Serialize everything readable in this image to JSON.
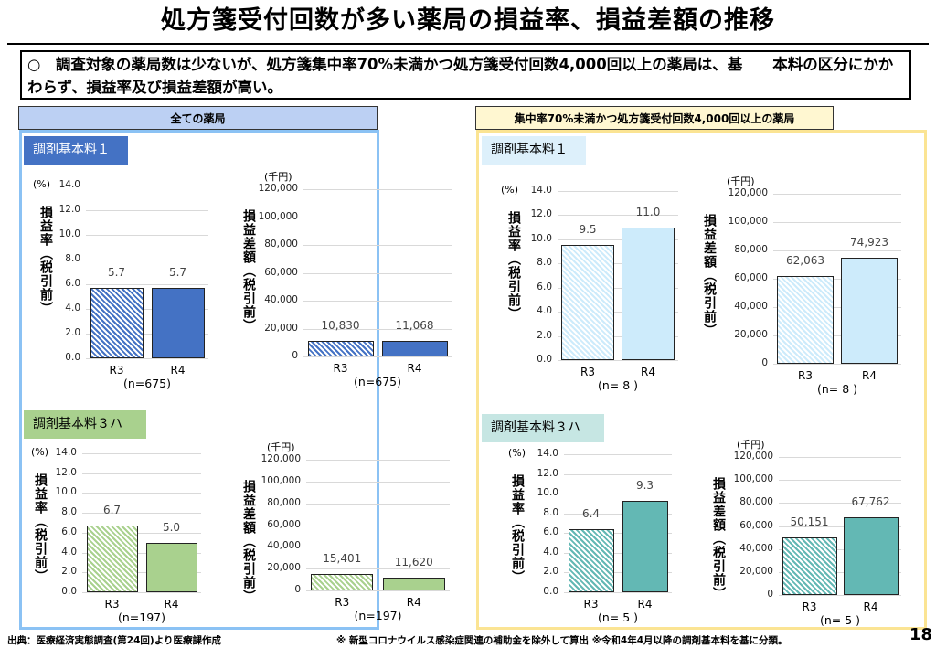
{
  "title": "処方箋受付回数が多い薬局の損益率、損益差額の推移",
  "summary": "○　調査対象の薬局数は少ないが、処方箋集中率70%未満かつ処方箋受付回数4,000回以上の薬局は、基　　本料の区分にかかわらず、損益率及び損益差額が高い。",
  "headers": {
    "left": "全ての薬局",
    "right": "集中率70%未満かつ処方箋受付回数4,000回以上の薬局"
  },
  "sections": {
    "lt": "調剤基本料１",
    "lb": "調剤基本料３ハ",
    "rt": "調剤基本料１",
    "rb": "調剤基本料３ハ"
  },
  "footer": {
    "source": "出典：医療経済実態調査(第24回)より医療課作成",
    "note": "※ 新型コロナウイルス感染症関連の補助金を除外して算出 ※令和4年4月以降の調剤基本料を基に分類。",
    "page": "18"
  },
  "colors": {
    "blue": "#4472C4",
    "green": "#A9D18E",
    "lightblue": "#CDEBFB",
    "teal": "#63B8B4"
  },
  "chart_data": [
    {
      "type": "bar",
      "title": "全ての薬局 調剤基本料１ 損益率",
      "ylabel": "損益率（税引前）",
      "unit": "(%)",
      "categories": [
        "R3",
        "R4"
      ],
      "values": [
        5.7,
        5.7
      ],
      "value_labels": [
        "5.7",
        "5.7"
      ],
      "ylim": [
        0,
        14
      ],
      "ticks": [
        "0.0",
        "2.0",
        "4.0",
        "6.0",
        "8.0",
        "10.0",
        "12.0",
        "14.0"
      ],
      "n": "(n=675)"
    },
    {
      "type": "bar",
      "title": "全ての薬局 調剤基本料１ 損益差額",
      "ylabel": "損益差額（税引前）",
      "unit": "(千円)",
      "categories": [
        "R3",
        "R4"
      ],
      "values": [
        10830,
        11068
      ],
      "value_labels": [
        "10,830",
        "11,068"
      ],
      "ylim": [
        0,
        120000
      ],
      "ticks": [
        "0",
        "20,000",
        "40,000",
        "60,000",
        "80,000",
        "100,000",
        "120,000"
      ],
      "n": "(n=675)"
    },
    {
      "type": "bar",
      "title": "全ての薬局 調剤基本料３ハ 損益率",
      "ylabel": "損益率（税引前）",
      "unit": "(%)",
      "categories": [
        "R3",
        "R4"
      ],
      "values": [
        6.7,
        5.0
      ],
      "value_labels": [
        "6.7",
        "5.0"
      ],
      "ylim": [
        0,
        14
      ],
      "ticks": [
        "0.0",
        "2.0",
        "4.0",
        "6.0",
        "8.0",
        "10.0",
        "12.0",
        "14.0"
      ],
      "n": "(n=197)"
    },
    {
      "type": "bar",
      "title": "全ての薬局 調剤基本料３ハ 損益差額",
      "ylabel": "損益差額（税引前）",
      "unit": "(千円)",
      "categories": [
        "R3",
        "R4"
      ],
      "values": [
        15401,
        11620
      ],
      "value_labels": [
        "15,401",
        "11,620"
      ],
      "ylim": [
        0,
        120000
      ],
      "ticks": [
        "0",
        "20,000",
        "40,000",
        "60,000",
        "80,000",
        "100,000",
        "120,000"
      ],
      "n": "(n=197)"
    },
    {
      "type": "bar",
      "title": "集中率70%未満 調剤基本料１ 損益率",
      "ylabel": "損益率（税引前）",
      "unit": "(%)",
      "categories": [
        "R3",
        "R4"
      ],
      "values": [
        9.5,
        11.0
      ],
      "value_labels": [
        "9.5",
        "11.0"
      ],
      "ylim": [
        0,
        14
      ],
      "ticks": [
        "0.0",
        "2.0",
        "4.0",
        "6.0",
        "8.0",
        "10.0",
        "12.0",
        "14.0"
      ],
      "n": "(n= 8 )"
    },
    {
      "type": "bar",
      "title": "集中率70%未満 調剤基本料１ 損益差額",
      "ylabel": "損益差額（税引前）",
      "unit": "(千円)",
      "categories": [
        "R3",
        "R4"
      ],
      "values": [
        62063,
        74923
      ],
      "value_labels": [
        "62,063",
        "74,923"
      ],
      "ylim": [
        0,
        120000
      ],
      "ticks": [
        "0",
        "20,000",
        "40,000",
        "60,000",
        "80,000",
        "100,000",
        "120,000"
      ],
      "n": "(n= 8 )"
    },
    {
      "type": "bar",
      "title": "集中率70%未満 調剤基本料３ハ 損益率",
      "ylabel": "損益率（税引前）",
      "unit": "(%)",
      "categories": [
        "R3",
        "R4"
      ],
      "values": [
        6.4,
        9.3
      ],
      "value_labels": [
        "6.4",
        "9.3"
      ],
      "ylim": [
        0,
        14
      ],
      "ticks": [
        "0.0",
        "2.0",
        "4.0",
        "6.0",
        "8.0",
        "10.0",
        "12.0",
        "14.0"
      ],
      "n": "(n= 5 )"
    },
    {
      "type": "bar",
      "title": "集中率70%未満 調剤基本料３ハ 損益差額",
      "ylabel": "損益差額（税引前）",
      "unit": "(千円)",
      "categories": [
        "R3",
        "R4"
      ],
      "values": [
        50151,
        67762
      ],
      "value_labels": [
        "50,151",
        "67,762"
      ],
      "ylim": [
        0,
        120000
      ],
      "ticks": [
        "0",
        "20,000",
        "40,000",
        "60,000",
        "80,000",
        "100,000",
        "120,000"
      ],
      "n": "(n= 5 )"
    }
  ]
}
